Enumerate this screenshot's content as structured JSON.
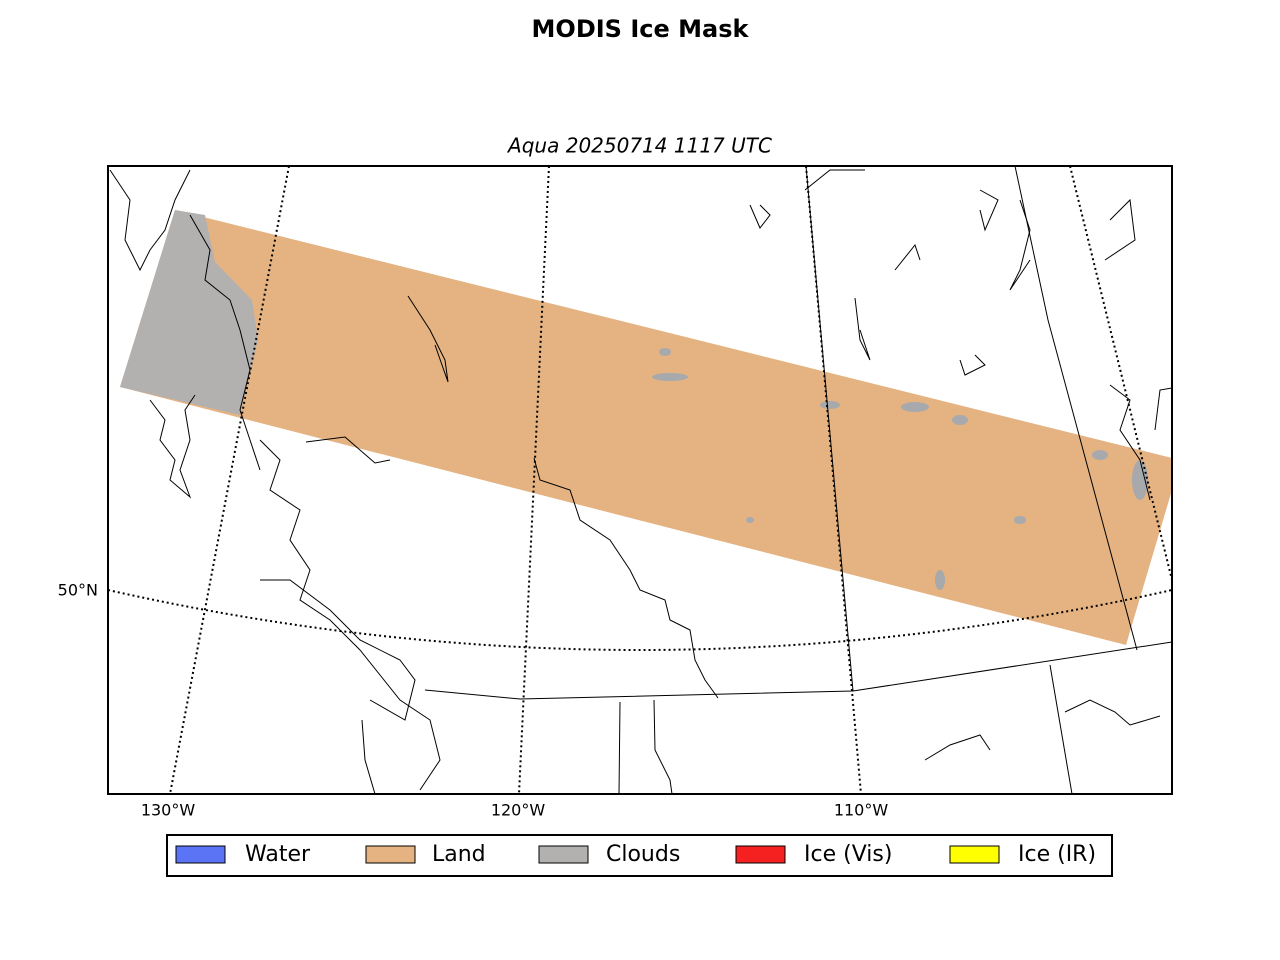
{
  "title": "MODIS Ice Mask",
  "subtitle": "Aqua 20250714 1117 UTC",
  "lat_labels": [
    "50°N"
  ],
  "lon_labels": [
    "130°W",
    "120°W",
    "110°W"
  ],
  "legend": [
    {
      "label": "Water",
      "color": "#5b74f5"
    },
    {
      "label": "Land",
      "color": "#e4b381"
    },
    {
      "label": "Clouds",
      "color": "#b3b0b0"
    },
    {
      "label": "Ice (Vis)",
      "color": "#f52020"
    },
    {
      "label": "Ice (IR)",
      "color": "#ffff00"
    }
  ]
}
